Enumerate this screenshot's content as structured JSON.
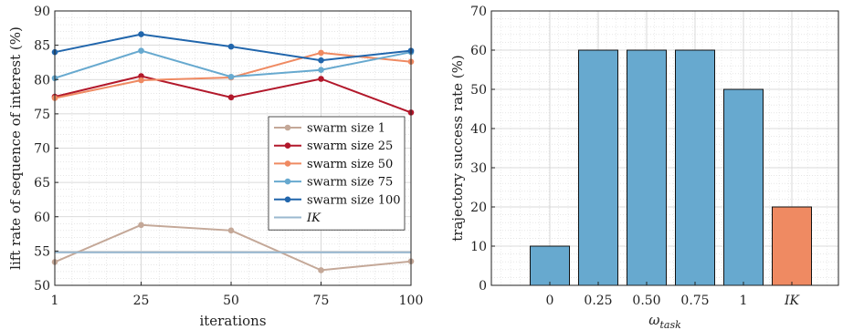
{
  "chart_data": [
    {
      "type": "line",
      "xlabel": "iterations",
      "ylabel": "lift rate of sequence of interest (%)",
      "x": [
        1,
        25,
        50,
        75,
        100
      ],
      "x_ticks": [
        "1",
        "25",
        "50",
        "75",
        "100"
      ],
      "ylim": [
        50,
        90
      ],
      "y_ticks": [
        50,
        55,
        60,
        65,
        70,
        75,
        80,
        85,
        90
      ],
      "grid": true,
      "legend_position": "center-right",
      "series": [
        {
          "name": "swarm size 1",
          "values": [
            53.4,
            58.8,
            58.0,
            52.2,
            53.5
          ],
          "color": "#c4a898",
          "markers": true
        },
        {
          "name": "swarm size 25",
          "values": [
            77.5,
            80.5,
            77.4,
            80.1,
            75.2
          ],
          "color": "#b2182b",
          "markers": true
        },
        {
          "name": "swarm size 50",
          "values": [
            77.3,
            79.9,
            80.3,
            83.9,
            82.6
          ],
          "color": "#ef8a62",
          "markers": true
        },
        {
          "name": "swarm size 75",
          "values": [
            80.2,
            84.2,
            80.4,
            81.4,
            84.0
          ],
          "color": "#67a9cf",
          "markers": true
        },
        {
          "name": "swarm size 100",
          "values": [
            84.0,
            86.6,
            84.8,
            82.8,
            84.2
          ],
          "color": "#2166ac",
          "markers": true
        },
        {
          "name": "IK",
          "values": [
            54.8,
            54.8,
            54.8,
            54.8,
            54.8
          ],
          "color": "#9ab8cf",
          "markers": false
        }
      ]
    },
    {
      "type": "bar",
      "xlabel": "ω",
      "xlabel_sub": "task",
      "ylabel": "trajectory success rate (%)",
      "categories": [
        "0",
        "0.25",
        "0.50",
        "0.75",
        "1",
        "IK"
      ],
      "values": [
        10,
        60,
        60,
        60,
        50,
        20
      ],
      "colors": [
        "#67a9cf",
        "#67a9cf",
        "#67a9cf",
        "#67a9cf",
        "#67a9cf",
        "#ef8a62"
      ],
      "ylim": [
        0,
        70
      ],
      "y_ticks": [
        0,
        10,
        20,
        30,
        40,
        50,
        60,
        70
      ],
      "grid": true
    }
  ]
}
